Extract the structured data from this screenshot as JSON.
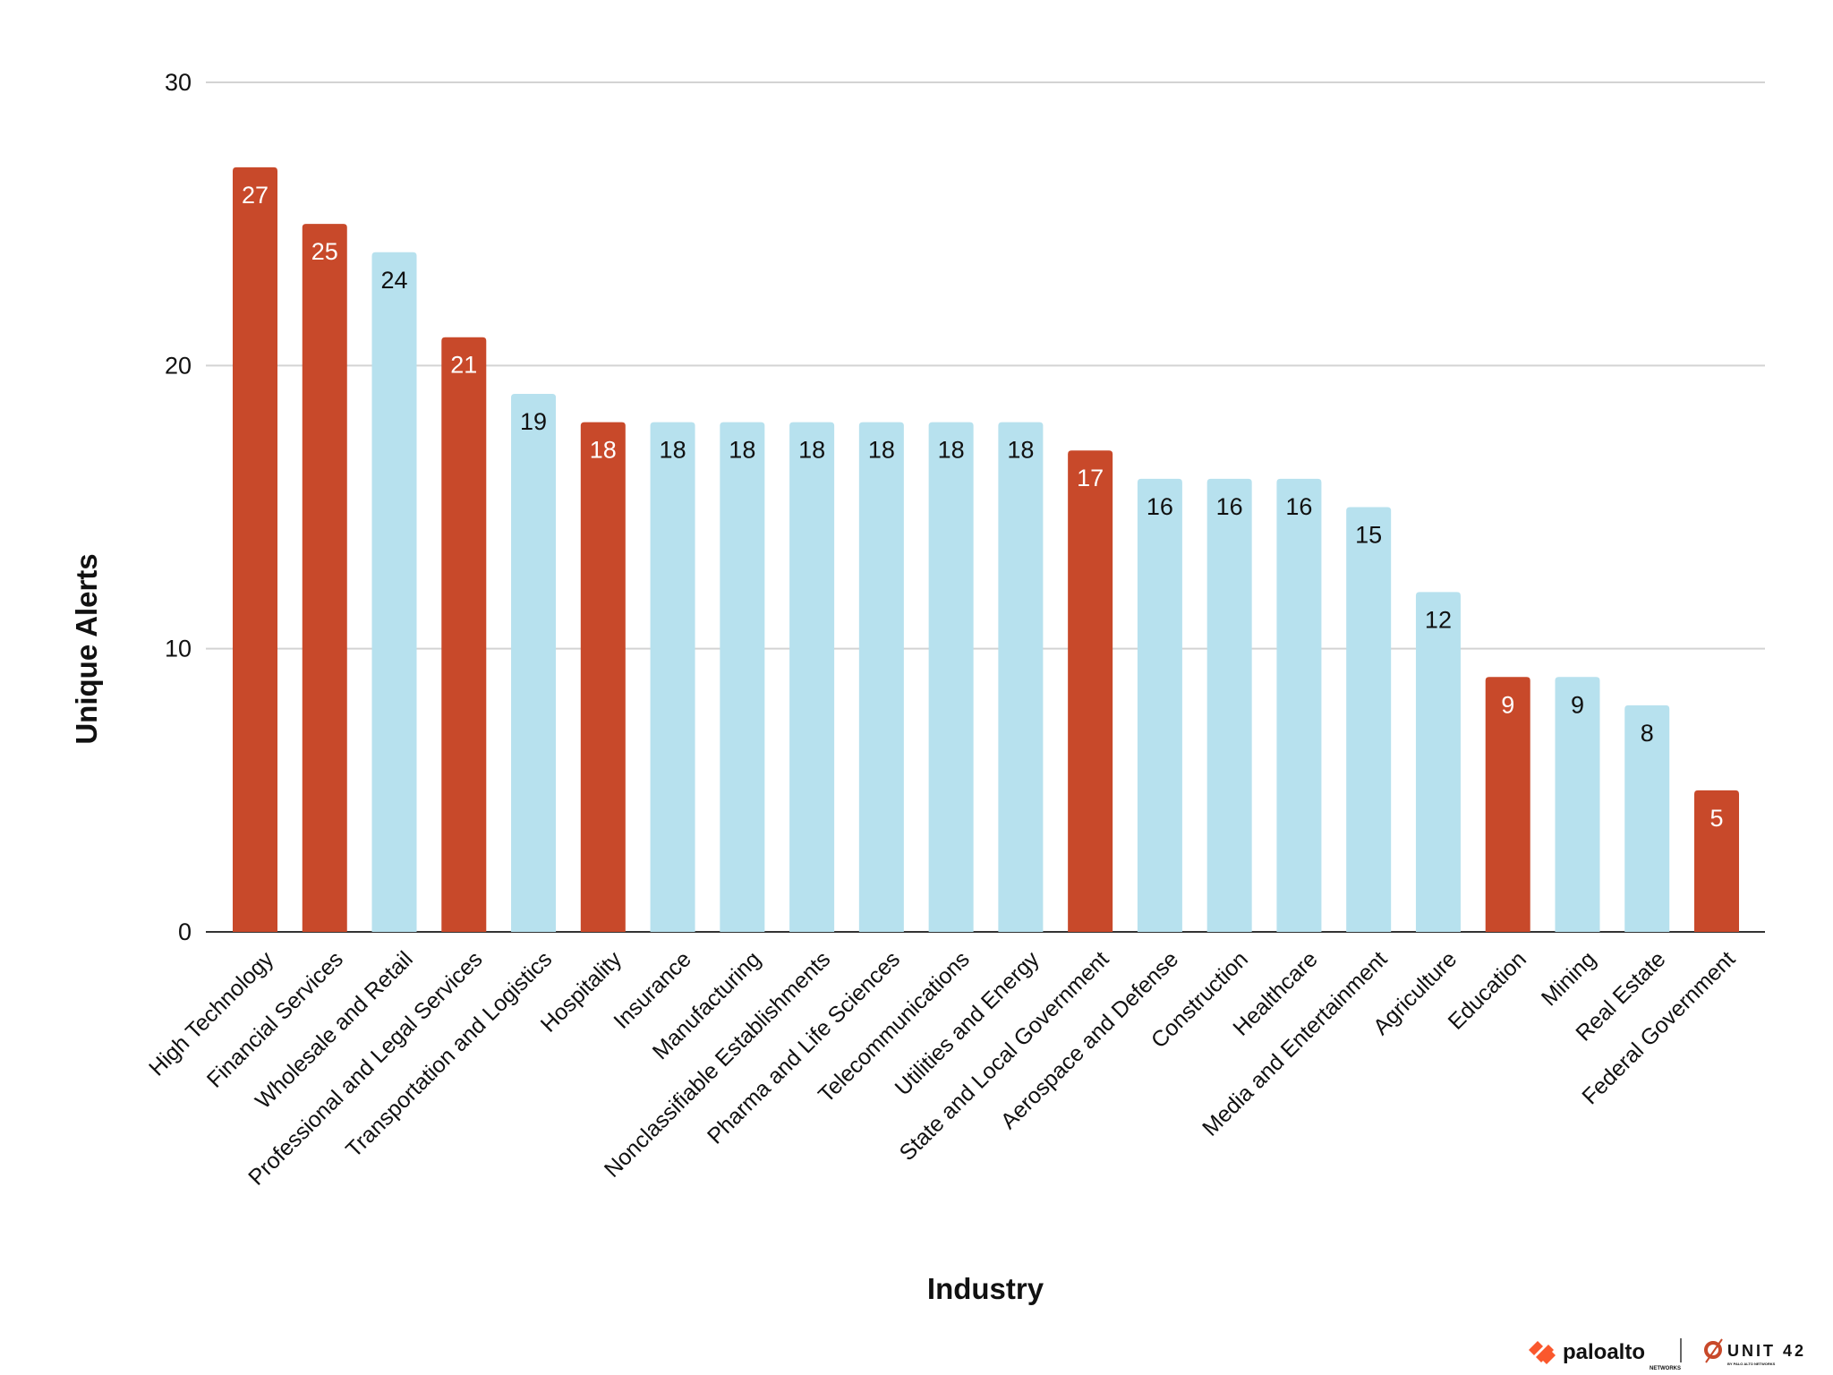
{
  "chart_data": {
    "type": "bar",
    "title": "",
    "xlabel": "Industry",
    "ylabel": "Unique Alerts",
    "ylim": [
      0,
      30
    ],
    "yticks": [
      0,
      10,
      20,
      30
    ],
    "grid": true,
    "legend": "none",
    "categories": [
      "High Technology",
      "Financial Services",
      "Wholesale and Retail",
      "Professional and Legal Services",
      "Transportation and Logistics",
      "Hospitality",
      "Insurance",
      "Manufacturing",
      "Nonclassifiable Establishments",
      "Pharma and Life Sciences",
      "Telecommunications",
      "Utilities and Energy",
      "State and Local Government",
      "Aerospace and Defense",
      "Construction",
      "Healthcare",
      "Media and Entertainment",
      "Agriculture",
      "Education",
      "Mining",
      "Real Estate",
      "Federal Government"
    ],
    "values": [
      27,
      25,
      24,
      21,
      19,
      18,
      18,
      18,
      18,
      18,
      18,
      18,
      17,
      16,
      16,
      16,
      15,
      12,
      9,
      9,
      8,
      5
    ],
    "highlighted": [
      true,
      true,
      false,
      true,
      false,
      true,
      false,
      false,
      false,
      false,
      false,
      false,
      true,
      false,
      false,
      false,
      false,
      false,
      true,
      false,
      false,
      true
    ],
    "colors": {
      "highlight": "#C8492A",
      "default": "#B7E1EE",
      "highlight_label": "#FFFFFF",
      "default_label": "#111111",
      "grid": "#D3D3D3"
    }
  },
  "branding": {
    "logo1": "paloalto",
    "logo1_sub": "NETWORKS",
    "logo2": "UNIT 42",
    "logo2_sub": "BY PALO ALTO NETWORKS"
  }
}
